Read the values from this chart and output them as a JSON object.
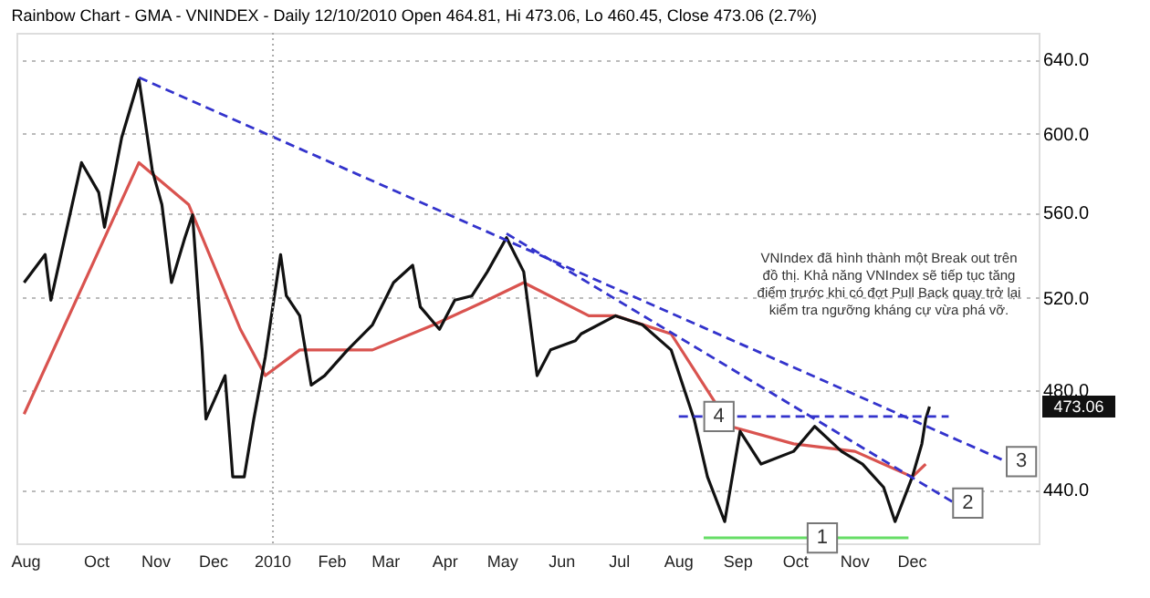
{
  "chart_data": {
    "type": "line",
    "title": "Rainbow Chart - GMA - VNINDEX - Daily 12/10/2010 Open 464.81, Hi 473.06, Lo 460.45, Close 473.06 (2.7%)",
    "log": true,
    "grid": "y",
    "line_style": "solid",
    "ylim": [
      420,
      655
    ],
    "yticks": [
      {
        "value": 440,
        "label": "440.0"
      },
      {
        "value": 480,
        "label": "480.0"
      },
      {
        "value": 520,
        "label": "520.0"
      },
      {
        "value": 560,
        "label": "560.0"
      },
      {
        "value": 600,
        "label": "600.0"
      },
      {
        "value": 640,
        "label": "640.0"
      }
    ],
    "xlim": [
      "2009-08-20",
      "2011-02-05"
    ],
    "xticks": [
      {
        "value": "2009-08-25",
        "label": "Aug"
      },
      {
        "value": "2009-10-01",
        "label": "Oct"
      },
      {
        "value": "2009-11-01",
        "label": "Nov"
      },
      {
        "value": "2009-12-01",
        "label": "Dec"
      },
      {
        "value": "2010-01-01",
        "label": "2010"
      },
      {
        "value": "2010-02-01",
        "label": "Feb"
      },
      {
        "value": "2010-03-01",
        "label": "Mar"
      },
      {
        "value": "2010-04-01",
        "label": "Apr"
      },
      {
        "value": "2010-05-01",
        "label": "May"
      },
      {
        "value": "2010-06-01",
        "label": "Jun"
      },
      {
        "value": "2010-07-01",
        "label": "Jul"
      },
      {
        "value": "2010-08-01",
        "label": "Aug"
      },
      {
        "value": "2010-09-01",
        "label": "Sep"
      },
      {
        "value": "2010-10-01",
        "label": "Oct"
      },
      {
        "value": "2010-11-01",
        "label": "Nov"
      },
      {
        "value": "2010-12-01",
        "label": "Dec"
      }
    ],
    "ref_lines": [
      {
        "axis": "x",
        "value": "2010-01-01",
        "color": "#aaaaaa",
        "line_style": "dotted"
      }
    ],
    "series": [
      {
        "color": "#d9534f",
        "x": [
          "2009-08-24",
          "2009-10-23",
          "2009-11-18",
          "2009-12-15",
          "2009-12-28",
          "2010-01-15",
          "2010-02-22",
          "2010-03-26",
          "2010-04-23",
          "2010-05-12",
          "2010-06-15",
          "2010-06-29",
          "2010-07-28",
          "2010-08-28",
          "2010-09-30",
          "2010-11-01",
          "2010-12-01",
          "2010-12-08"
        ],
        "values": [
          470,
          585,
          564,
          506,
          486,
          497,
          497,
          508,
          519,
          527,
          512,
          512,
          504,
          465,
          458,
          455,
          445,
          450
        ]
      },
      {
        "color": "#111111",
        "x": [
          "2009-08-24",
          "2009-09-04",
          "2009-09-07",
          "2009-09-23",
          "2009-10-02",
          "2009-10-05",
          "2009-10-14",
          "2009-10-23",
          "2009-10-30",
          "2009-11-04",
          "2009-11-09",
          "2009-11-16",
          "2009-11-20",
          "2009-11-25",
          "2009-11-27",
          "2009-12-07",
          "2009-12-11",
          "2009-12-17",
          "2009-12-22",
          "2009-12-28",
          "2010-01-05",
          "2010-01-08",
          "2010-01-15",
          "2010-01-21",
          "2010-01-28",
          "2010-02-09",
          "2010-02-22",
          "2010-03-05",
          "2010-03-15",
          "2010-03-19",
          "2010-03-29",
          "2010-04-06",
          "2010-04-15",
          "2010-04-23",
          "2010-05-03",
          "2010-05-12",
          "2010-05-19",
          "2010-05-26",
          "2010-06-08",
          "2010-06-11",
          "2010-06-29",
          "2010-07-13",
          "2010-07-28",
          "2010-08-09",
          "2010-08-16",
          "2010-08-25",
          "2010-09-02",
          "2010-09-13",
          "2010-09-30",
          "2010-10-11",
          "2010-10-25",
          "2010-11-05",
          "2010-11-16",
          "2010-11-22",
          "2010-12-01",
          "2010-12-06",
          "2010-12-08",
          "2010-12-10"
        ],
        "values": [
          527,
          540,
          519,
          585,
          570,
          553,
          598,
          629,
          581,
          564,
          527,
          548,
          559,
          497,
          468,
          486,
          445,
          445,
          468,
          494,
          540,
          521,
          512,
          482,
          486,
          497,
          508,
          527,
          535,
          516,
          506,
          519,
          521,
          532,
          548,
          532,
          486,
          497,
          501,
          504,
          512,
          508,
          497,
          468,
          445,
          428,
          463,
          450,
          455,
          465,
          455,
          450,
          441,
          428,
          445,
          458,
          468,
          473.06
        ]
      },
      {
        "color": "#3333cc",
        "line_style": "dashed",
        "x": [
          "2009-10-23",
          "2011-01-19"
        ],
        "values": [
          630,
          451
        ]
      },
      {
        "color": "#3333cc",
        "line_style": "dashed",
        "x": [
          "2010-05-03",
          "2010-12-23"
        ],
        "values": [
          550,
          435
        ]
      },
      {
        "color": "#3333cc",
        "line_style": "dashed",
        "x": [
          "2010-08-01",
          "2010-12-20"
        ],
        "values": [
          469,
          469
        ]
      },
      {
        "color": "#66dd66",
        "x": [
          "2010-08-14",
          "2010-11-29"
        ],
        "values": [
          422,
          422
        ]
      }
    ],
    "annotations": [
      {
        "text": "1",
        "x": "2010-10-15",
        "y": 422
      },
      {
        "text": "2",
        "x": "2010-12-30",
        "y": 435
      },
      {
        "text": "3",
        "x": "2011-01-27",
        "y": 451
      },
      {
        "text": "4",
        "x": "2010-08-22",
        "y": 469
      },
      {
        "text": "473.06",
        "y": 473.06
      },
      "VNIndex đã hình thành một Break out trên\nđồ thị. Khả năng VNIndex sẽ tiếp tục tăng\nđiểm trước khi có đợt Pull Back quay trở lại\nkiểm tra ngưỡng kháng cự vừa phá vỡ."
    ]
  }
}
